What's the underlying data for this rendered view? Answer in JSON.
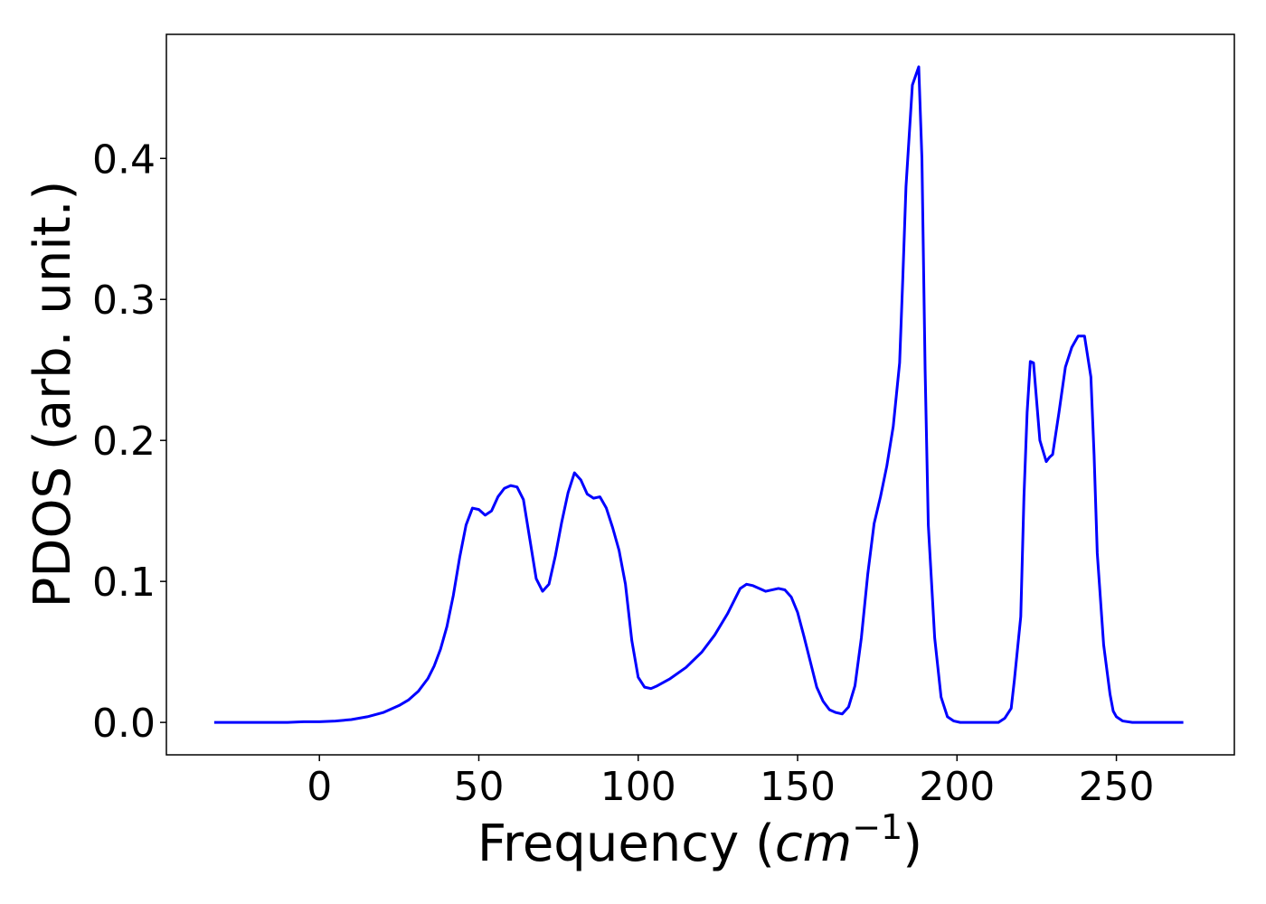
{
  "chart_data": {
    "type": "line",
    "title": "",
    "xlabel": "Frequency (",
    "xlabel_math": "cm",
    "xlabel_sup": "−1",
    "xlabel_close": ")",
    "ylabel": "PDOS (arb. unit.)",
    "xlim": [
      -48,
      287
    ],
    "ylim": [
      -0.023,
      0.488
    ],
    "xticks": [
      0,
      50,
      100,
      150,
      200,
      250
    ],
    "xtick_labels": [
      "0",
      "50",
      "100",
      "150",
      "200",
      "250"
    ],
    "yticks": [
      0.0,
      0.1,
      0.2,
      0.3,
      0.4
    ],
    "ytick_labels": [
      "0.0",
      "0.1",
      "0.2",
      "0.3",
      "0.4"
    ],
    "grid": false,
    "legend": "none",
    "series": [
      {
        "color": "#0000ff",
        "x": [
          -33,
          -20,
          -10,
          -5,
          0,
          5,
          10,
          15,
          20,
          25,
          28,
          31,
          34,
          36,
          38,
          40,
          42,
          44,
          46,
          48,
          50,
          52,
          54,
          56,
          58,
          60,
          62,
          64,
          66,
          68,
          70,
          72,
          74,
          76,
          78,
          80,
          82,
          84,
          86,
          88,
          90,
          92,
          94,
          96,
          98,
          100,
          102,
          104,
          106,
          110,
          115,
          120,
          124,
          128,
          132,
          134,
          136,
          140,
          144,
          146,
          148,
          150,
          152,
          154,
          156,
          158,
          160,
          162,
          164,
          166,
          168,
          170,
          172,
          174,
          176,
          178,
          180,
          182,
          183,
          184,
          186,
          188,
          189,
          190,
          191,
          193,
          195,
          197,
          199,
          201,
          205,
          210,
          213,
          215,
          217,
          218,
          220,
          221,
          222,
          223,
          224,
          226,
          228,
          229,
          230,
          232,
          234,
          236,
          238,
          240,
          242,
          243,
          244,
          246,
          248,
          249,
          250,
          252,
          255,
          260,
          271
        ],
        "y": [
          0.0,
          0.0,
          0.0,
          0.0005,
          0.0005,
          0.001,
          0.002,
          0.004,
          0.007,
          0.012,
          0.016,
          0.022,
          0.031,
          0.04,
          0.052,
          0.068,
          0.09,
          0.117,
          0.14,
          0.152,
          0.151,
          0.147,
          0.15,
          0.16,
          0.166,
          0.168,
          0.167,
          0.158,
          0.13,
          0.102,
          0.093,
          0.098,
          0.118,
          0.142,
          0.163,
          0.177,
          0.172,
          0.162,
          0.159,
          0.16,
          0.152,
          0.138,
          0.122,
          0.098,
          0.058,
          0.032,
          0.025,
          0.024,
          0.026,
          0.031,
          0.039,
          0.05,
          0.062,
          0.077,
          0.095,
          0.098,
          0.097,
          0.093,
          0.095,
          0.094,
          0.089,
          0.078,
          0.061,
          0.043,
          0.025,
          0.015,
          0.009,
          0.007,
          0.006,
          0.011,
          0.026,
          0.06,
          0.105,
          0.141,
          0.16,
          0.182,
          0.21,
          0.255,
          0.315,
          0.38,
          0.452,
          0.465,
          0.4,
          0.25,
          0.14,
          0.06,
          0.018,
          0.004,
          0.001,
          0.0,
          0.0,
          0.0,
          0.0,
          0.003,
          0.01,
          0.03,
          0.075,
          0.16,
          0.22,
          0.256,
          0.255,
          0.2,
          0.185,
          0.188,
          0.19,
          0.22,
          0.252,
          0.266,
          0.274,
          0.274,
          0.245,
          0.19,
          0.12,
          0.055,
          0.02,
          0.008,
          0.004,
          0.001,
          0.0,
          0.0,
          0.0
        ]
      }
    ]
  }
}
